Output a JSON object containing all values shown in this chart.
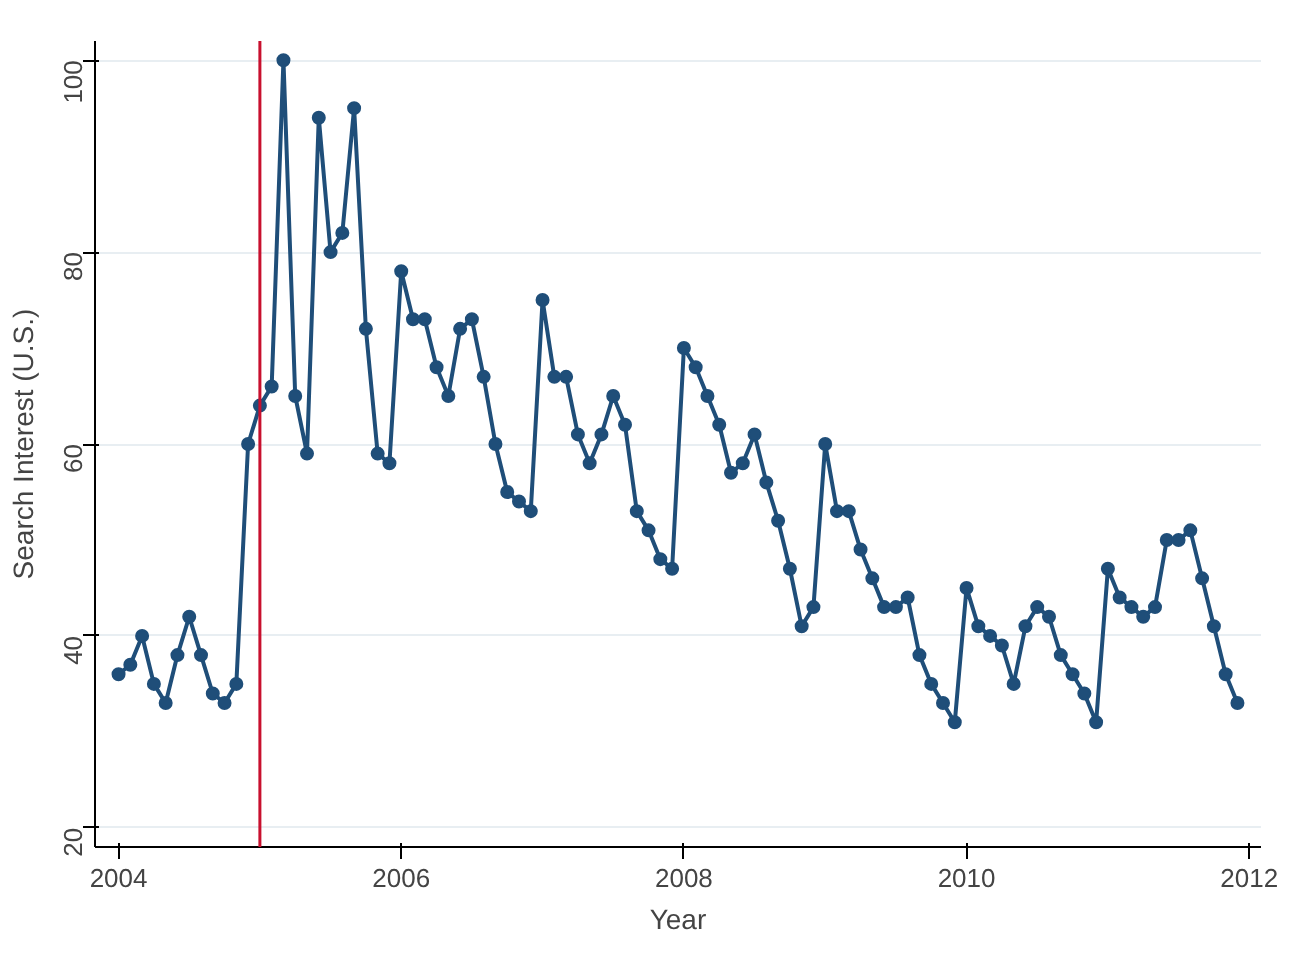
{
  "chart_data": {
    "type": "line",
    "xlabel": "Year",
    "ylabel": "Search Interest (U.S.)",
    "x": [
      "2004-01",
      "2004-02",
      "2004-03",
      "2004-04",
      "2004-05",
      "2004-06",
      "2004-07",
      "2004-08",
      "2004-09",
      "2004-10",
      "2004-11",
      "2004-12",
      "2005-01",
      "2005-02",
      "2005-03",
      "2005-04",
      "2005-05",
      "2005-06",
      "2005-07",
      "2005-08",
      "2005-09",
      "2005-10",
      "2005-11",
      "2005-12",
      "2006-01",
      "2006-02",
      "2006-03",
      "2006-04",
      "2006-05",
      "2006-06",
      "2006-07",
      "2006-08",
      "2006-09",
      "2006-10",
      "2006-11",
      "2006-12",
      "2007-01",
      "2007-02",
      "2007-03",
      "2007-04",
      "2007-05",
      "2007-06",
      "2007-07",
      "2007-08",
      "2007-09",
      "2007-10",
      "2007-11",
      "2007-12",
      "2008-01",
      "2008-02",
      "2008-03",
      "2008-04",
      "2008-05",
      "2008-06",
      "2008-07",
      "2008-08",
      "2008-09",
      "2008-10",
      "2008-11",
      "2008-12",
      "2009-01",
      "2009-02",
      "2009-03",
      "2009-04",
      "2009-05",
      "2009-06",
      "2009-07",
      "2009-08",
      "2009-09",
      "2009-10",
      "2009-11",
      "2009-12",
      "2010-01",
      "2010-02",
      "2010-03",
      "2010-04",
      "2010-05",
      "2010-06",
      "2010-07",
      "2010-08",
      "2010-09",
      "2010-10",
      "2010-11",
      "2010-12",
      "2011-01",
      "2011-02",
      "2011-03",
      "2011-04",
      "2011-05",
      "2011-06",
      "2011-07",
      "2011-08",
      "2011-09",
      "2011-10",
      "2011-11",
      "2011-12"
    ],
    "series": [
      {
        "color": "#1f4e79",
        "values": [
          36,
          37,
          40,
          35,
          33,
          38,
          42,
          38,
          34,
          33,
          35,
          60,
          64,
          66,
          100,
          65,
          59,
          94,
          80,
          82,
          95,
          72,
          59,
          58,
          78,
          73,
          73,
          68,
          65,
          72,
          73,
          67,
          60,
          55,
          54,
          53,
          75,
          67,
          67,
          61,
          58,
          61,
          65,
          62,
          53,
          51,
          48,
          47,
          70,
          68,
          65,
          62,
          57,
          58,
          61,
          56,
          52,
          47,
          41,
          43,
          60,
          53,
          53,
          49,
          46,
          43,
          43,
          44,
          38,
          35,
          33,
          31,
          45,
          41,
          40,
          39,
          35,
          41,
          43,
          42,
          38,
          36,
          34,
          31,
          47,
          44,
          43,
          42,
          43,
          50,
          50,
          51,
          46,
          41,
          36,
          33
        ]
      }
    ],
    "xlim": [
      "2003-11",
      "2012-02"
    ],
    "xticks": [
      "2004",
      "2006",
      "2008",
      "2010",
      "2012"
    ],
    "ylim": [
      18,
      102
    ],
    "yticks": [
      20,
      40,
      60,
      80,
      100
    ],
    "ref_lines": [
      {
        "axis": "x",
        "value": "2005",
        "color": "#c8102e"
      }
    ],
    "grid": "y",
    "marker": "circle",
    "line_style": "solid"
  }
}
